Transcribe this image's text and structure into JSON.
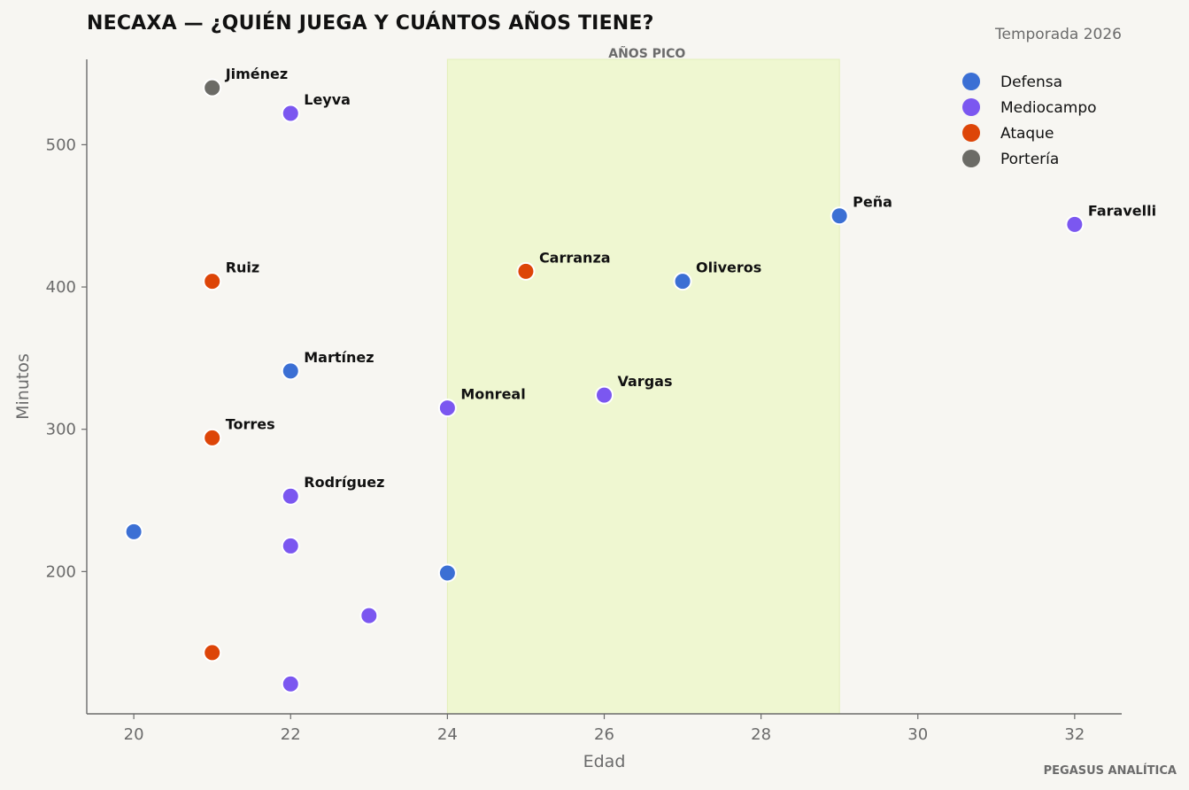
{
  "title": "NECAXA — ¿QUIÉN JUEGA Y CUÁNTOS AÑOS TIENE?",
  "subtitle": "Temporada 2026",
  "brand": "PEGASUS ANALÍTICA",
  "chart_data": {
    "type": "scatter",
    "title": "NECAXA — ¿QUIÉN JUEGA Y CUÁNTOS AÑOS TIENE?",
    "xlabel": "Edad",
    "ylabel": "Minutos",
    "xlim": [
      19.4,
      32.6
    ],
    "ylim": [
      100,
      560
    ],
    "xticks": [
      20,
      22,
      24,
      26,
      28,
      30,
      32
    ],
    "yticks": [
      200,
      300,
      400,
      500
    ],
    "grid": false,
    "legend_position": "top-right",
    "highlight_band": {
      "label": "AÑOS PICO",
      "x_range": [
        24,
        29
      ],
      "color": "#eff7d1"
    },
    "categories": [
      {
        "name": "Defensa",
        "color": "#3b6fd4"
      },
      {
        "name": "Mediocampo",
        "color": "#7b57f0"
      },
      {
        "name": "Ataque",
        "color": "#dd4508"
      },
      {
        "name": "Portería",
        "color": "#6b6b66"
      }
    ],
    "points": [
      {
        "label": "Jiménez",
        "x": 21,
        "y": 540,
        "group": "Portería"
      },
      {
        "label": "Leyva",
        "x": 22,
        "y": 522,
        "group": "Mediocampo"
      },
      {
        "label": "Peña",
        "x": 29,
        "y": 450,
        "group": "Defensa"
      },
      {
        "label": "Faravelli",
        "x": 32,
        "y": 444,
        "group": "Mediocampo"
      },
      {
        "label": "Ruiz",
        "x": 21,
        "y": 404,
        "group": "Ataque"
      },
      {
        "label": "Carranza",
        "x": 25,
        "y": 411,
        "group": "Ataque"
      },
      {
        "label": "Oliveros",
        "x": 27,
        "y": 404,
        "group": "Defensa"
      },
      {
        "label": "Martínez",
        "x": 22,
        "y": 341,
        "group": "Defensa"
      },
      {
        "label": "Monreal",
        "x": 24,
        "y": 315,
        "group": "Mediocampo"
      },
      {
        "label": "Vargas",
        "x": 26,
        "y": 324,
        "group": "Mediocampo"
      },
      {
        "label": "Torres",
        "x": 21,
        "y": 294,
        "group": "Ataque"
      },
      {
        "label": "Rodríguez",
        "x": 22,
        "y": 253,
        "group": "Mediocampo"
      },
      {
        "label": "",
        "x": 20,
        "y": 228,
        "group": "Defensa"
      },
      {
        "label": "",
        "x": 22,
        "y": 218,
        "group": "Mediocampo"
      },
      {
        "label": "",
        "x": 24,
        "y": 199,
        "group": "Defensa"
      },
      {
        "label": "",
        "x": 23,
        "y": 169,
        "group": "Mediocampo"
      },
      {
        "label": "",
        "x": 21,
        "y": 143,
        "group": "Ataque"
      },
      {
        "label": "",
        "x": 22,
        "y": 121,
        "group": "Mediocampo"
      }
    ]
  }
}
